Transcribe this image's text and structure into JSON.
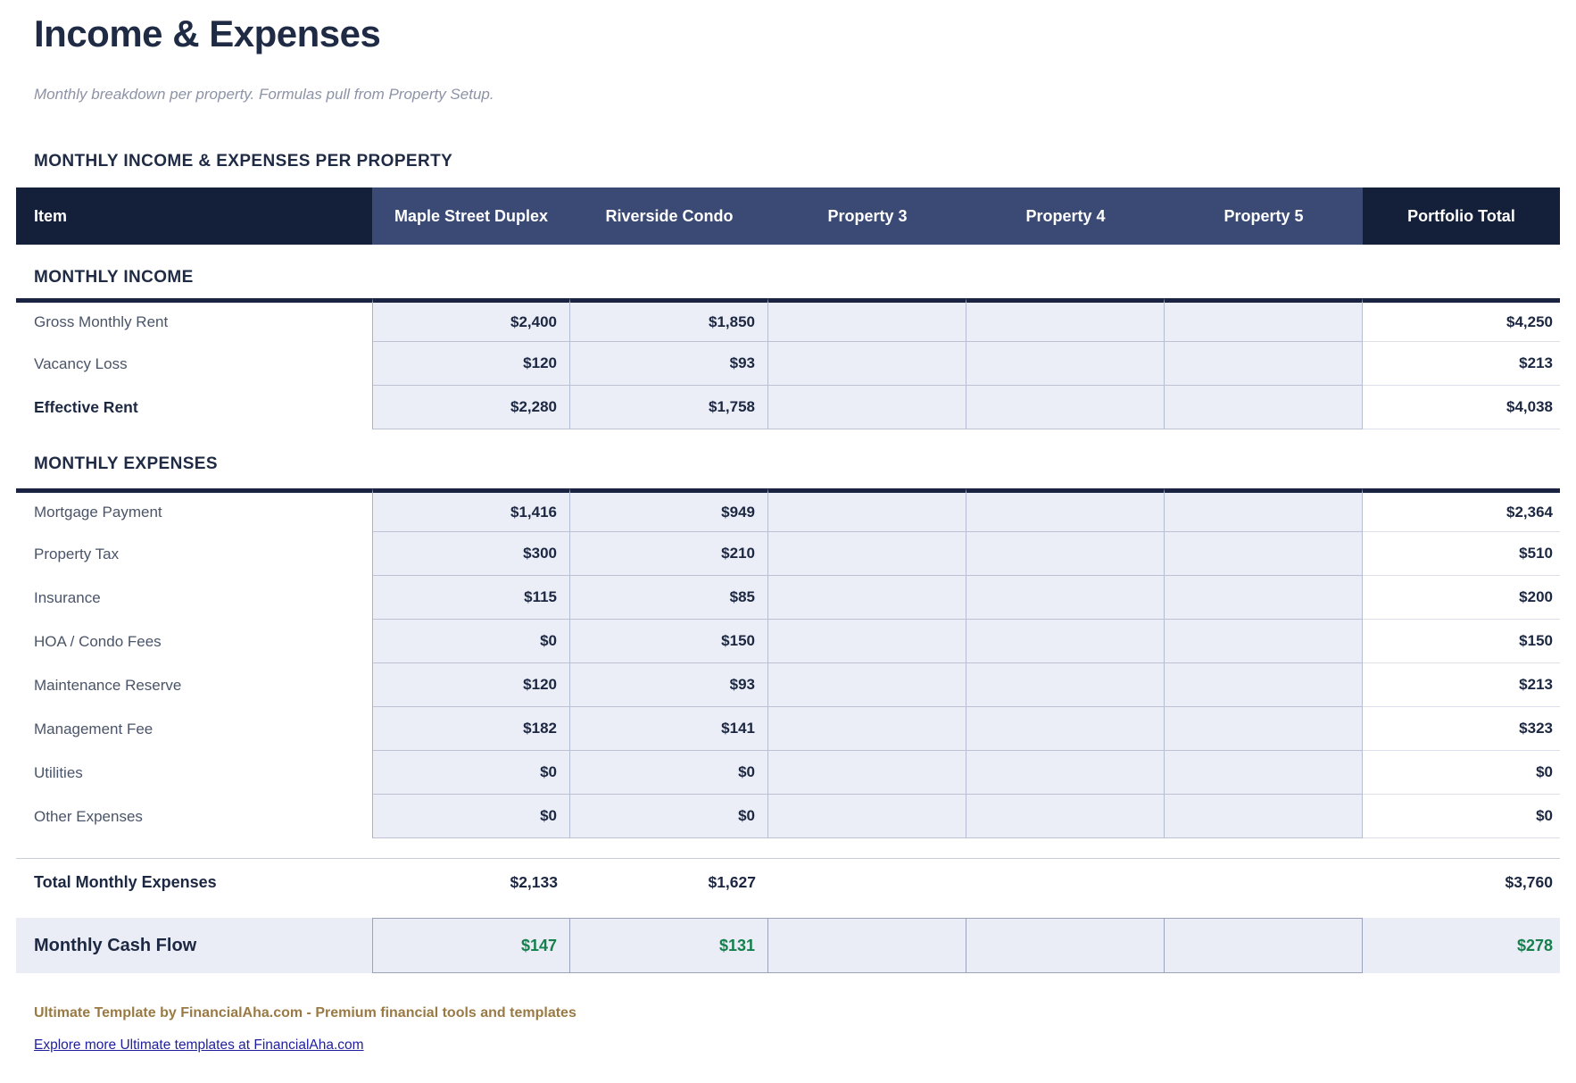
{
  "page": {
    "title": "Income & Expenses",
    "subtitle": "Monthly breakdown per property. Formulas pull from Property Setup.",
    "section_heading": "MONTHLY INCOME & EXPENSES PER PROPERTY"
  },
  "table": {
    "columns": [
      "Item",
      "Maple Street Duplex",
      "Riverside Condo",
      "Property 3",
      "Property 4",
      "Property 5",
      "Portfolio Total"
    ],
    "income": {
      "heading": "MONTHLY INCOME",
      "rows": [
        {
          "label": "Gross Monthly Rent",
          "values": [
            "$2,400",
            "$1,850",
            "",
            "",
            ""
          ],
          "total": "$4,250"
        },
        {
          "label": "Vacancy Loss",
          "values": [
            "$120",
            "$93",
            "",
            "",
            ""
          ],
          "total": "$213"
        },
        {
          "label": "Effective Rent",
          "values": [
            "$2,280",
            "$1,758",
            "",
            "",
            ""
          ],
          "total": "$4,038"
        }
      ]
    },
    "expenses": {
      "heading": "MONTHLY EXPENSES",
      "rows": [
        {
          "label": "Mortgage Payment",
          "values": [
            "$1,416",
            "$949",
            "",
            "",
            ""
          ],
          "total": "$2,364"
        },
        {
          "label": "Property Tax",
          "values": [
            "$300",
            "$210",
            "",
            "",
            ""
          ],
          "total": "$510"
        },
        {
          "label": "Insurance",
          "values": [
            "$115",
            "$85",
            "",
            "",
            ""
          ],
          "total": "$200"
        },
        {
          "label": "HOA / Condo Fees",
          "values": [
            "$0",
            "$150",
            "",
            "",
            ""
          ],
          "total": "$150"
        },
        {
          "label": "Maintenance Reserve",
          "values": [
            "$120",
            "$93",
            "",
            "",
            ""
          ],
          "total": "$213"
        },
        {
          "label": "Management Fee",
          "values": [
            "$182",
            "$141",
            "",
            "",
            ""
          ],
          "total": "$323"
        },
        {
          "label": "Utilities",
          "values": [
            "$0",
            "$0",
            "",
            "",
            ""
          ],
          "total": "$0"
        },
        {
          "label": "Other Expenses",
          "values": [
            "$0",
            "$0",
            "",
            "",
            ""
          ],
          "total": "$0"
        }
      ]
    },
    "summary": {
      "total_row": {
        "label": "Total Monthly Expenses",
        "values": [
          "$2,133",
          "$1,627",
          "",
          "",
          ""
        ],
        "total": "$3,760"
      },
      "cashflow_row": {
        "label": "Monthly Cash Flow",
        "values": [
          "$147",
          "$131",
          "",
          "",
          ""
        ],
        "total": "$278"
      }
    }
  },
  "footer": {
    "credit": "Ultimate Template by FinancialAha.com - Premium financial tools and templates",
    "link": "Explore more Ultimate templates at FinancialAha.com"
  },
  "colors": {
    "header_dark_navy": "#141f3a",
    "header_blue": "#3a4a74",
    "accent_navy": "#1c2742",
    "cell_background": "#ebeef6",
    "positive_green": "#15804e",
    "footer_gold": "#9a7a44",
    "link_blue": "#1f1f9e"
  }
}
